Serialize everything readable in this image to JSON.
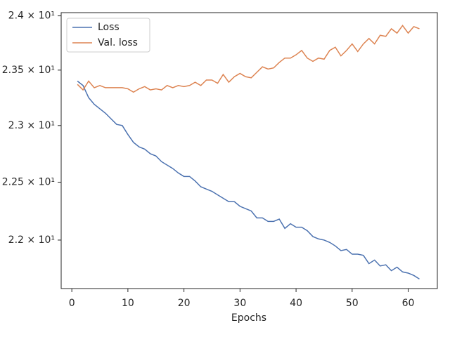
{
  "chart_data": {
    "type": "line",
    "xlabel": "Epochs",
    "log_y": true,
    "legend": "upper left",
    "x": [
      1,
      2,
      3,
      4,
      5,
      6,
      7,
      8,
      9,
      10,
      11,
      12,
      13,
      14,
      15,
      16,
      17,
      18,
      19,
      20,
      21,
      22,
      23,
      24,
      25,
      26,
      27,
      28,
      29,
      30,
      31,
      32,
      33,
      34,
      35,
      36,
      37,
      38,
      39,
      40,
      41,
      42,
      43,
      44,
      45,
      46,
      47,
      48,
      49,
      50,
      51,
      52,
      53,
      54,
      55,
      56,
      57,
      58,
      59,
      60,
      61,
      62
    ],
    "series": [
      {
        "name": "Loss",
        "color": "#4c72b0",
        "values": [
          23.4,
          23.36,
          23.25,
          23.19,
          23.15,
          23.11,
          23.06,
          23.01,
          23.0,
          22.92,
          22.85,
          22.81,
          22.79,
          22.75,
          22.73,
          22.68,
          22.65,
          22.62,
          22.58,
          22.55,
          22.55,
          22.51,
          22.46,
          22.44,
          22.42,
          22.39,
          22.36,
          22.33,
          22.33,
          22.29,
          22.27,
          22.25,
          22.19,
          22.19,
          22.16,
          22.16,
          22.18,
          22.1,
          22.14,
          22.11,
          22.11,
          22.08,
          22.03,
          22.01,
          22.0,
          21.98,
          21.95,
          21.91,
          21.92,
          21.88,
          21.88,
          21.87,
          21.8,
          21.83,
          21.78,
          21.79,
          21.74,
          21.77,
          21.73,
          21.72,
          21.7,
          21.67
        ]
      },
      {
        "name": "Val. loss",
        "color": "#dd8452",
        "values": [
          23.37,
          23.32,
          23.4,
          23.34,
          23.36,
          23.34,
          23.34,
          23.34,
          23.34,
          23.33,
          23.3,
          23.33,
          23.35,
          23.32,
          23.33,
          23.32,
          23.36,
          23.34,
          23.36,
          23.35,
          23.36,
          23.39,
          23.36,
          23.41,
          23.41,
          23.38,
          23.46,
          23.39,
          23.44,
          23.47,
          23.44,
          23.43,
          23.48,
          23.53,
          23.51,
          23.52,
          23.57,
          23.61,
          23.61,
          23.64,
          23.68,
          23.61,
          23.58,
          23.61,
          23.6,
          23.68,
          23.71,
          23.63,
          23.68,
          23.74,
          23.67,
          23.74,
          23.79,
          23.74,
          23.82,
          23.81,
          23.88,
          23.84,
          23.91,
          23.84,
          23.9,
          23.88
        ]
      }
    ],
    "xlim": [
      -1.9,
      65.2
    ],
    "xticks": [
      0,
      10,
      20,
      30,
      40,
      50,
      60
    ],
    "ylim": [
      21.59,
      24.03
    ],
    "yticks": [
      {
        "value": 22,
        "label": "2.2 × 10¹"
      },
      {
        "value": 22.5,
        "label": "2.25 × 10¹"
      },
      {
        "value": 23,
        "label": "2.3 × 10¹"
      },
      {
        "value": 23.5,
        "label": "2.35 × 10¹"
      },
      {
        "value": 24,
        "label": "2.4 × 10¹"
      }
    ]
  }
}
